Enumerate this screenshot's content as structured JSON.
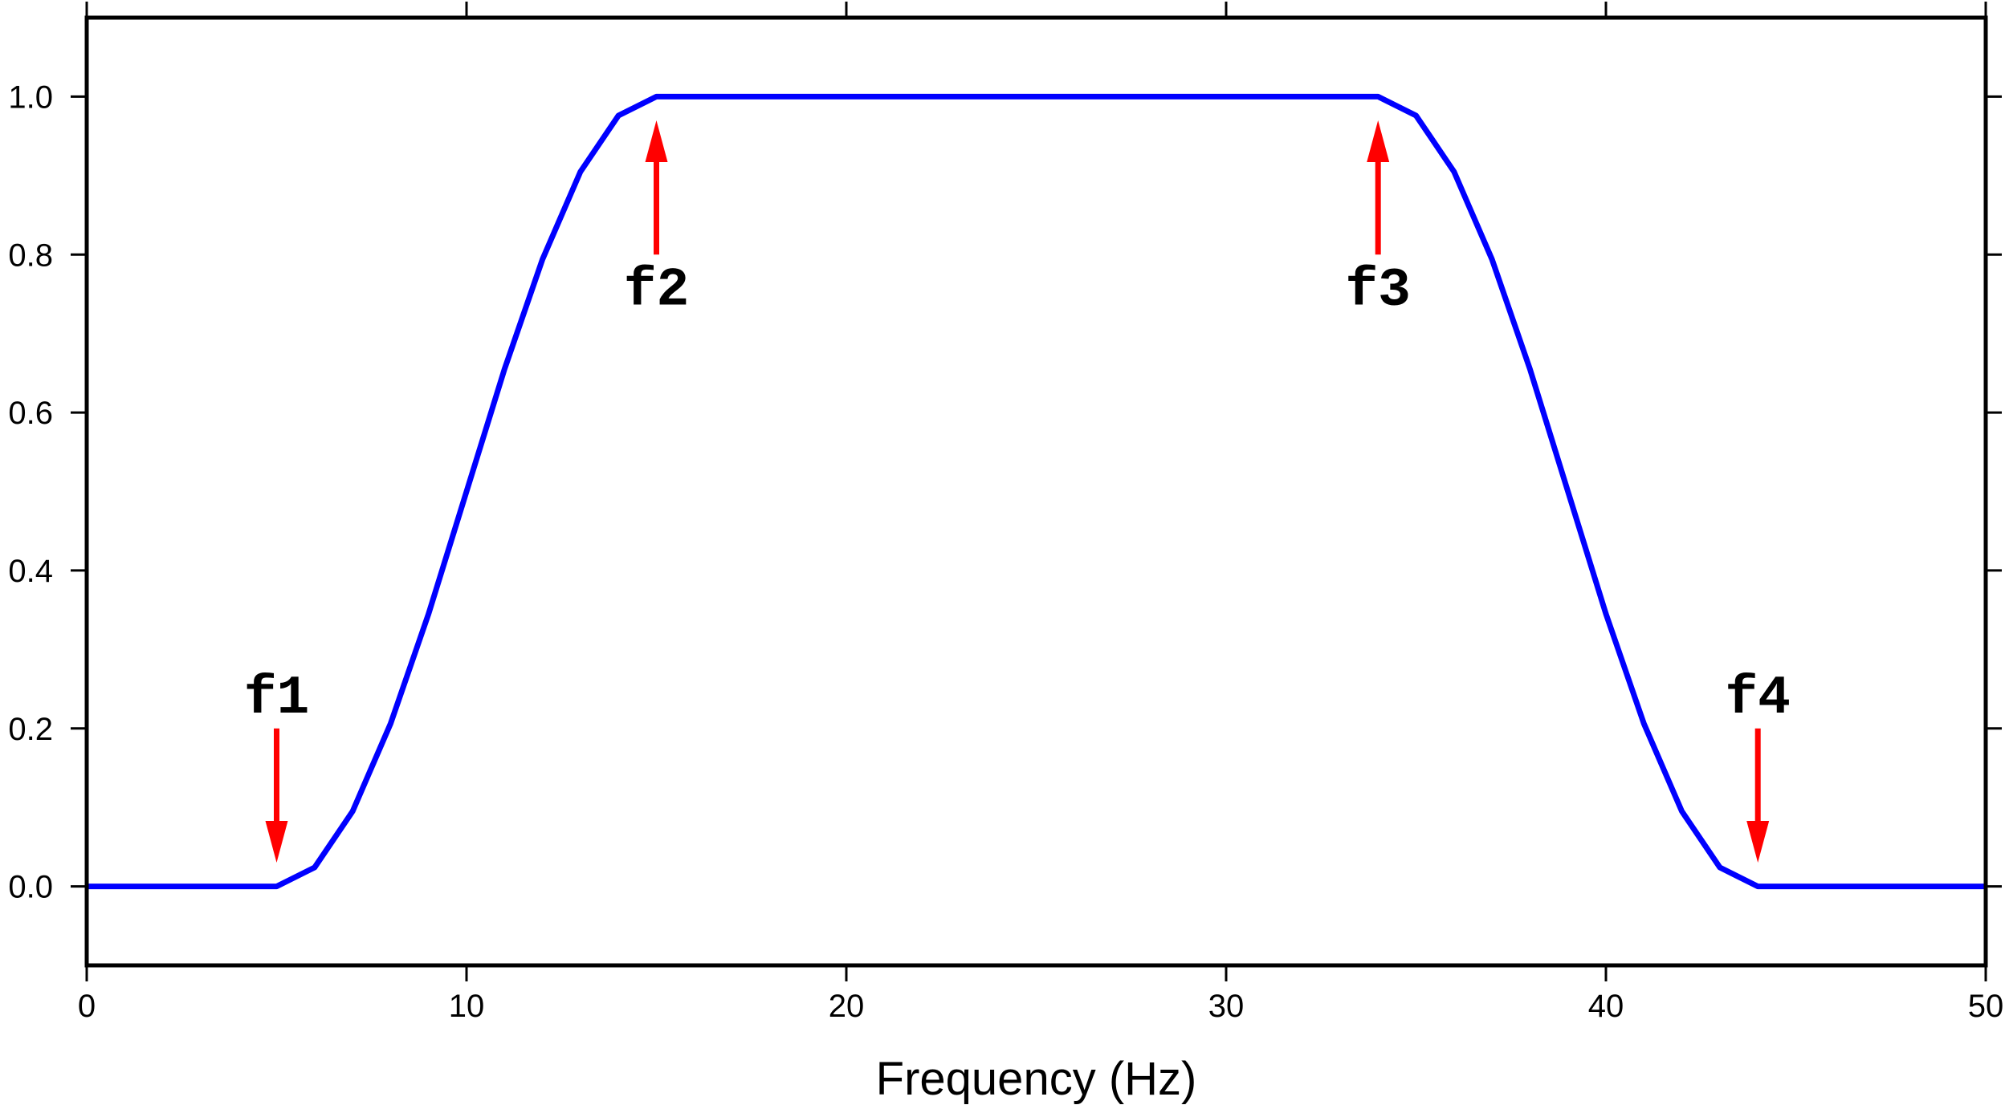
{
  "chart_data": {
    "type": "line",
    "xlabel": "Frequency (Hz)",
    "ylabel": "",
    "title": "",
    "xlim": [
      0,
      50
    ],
    "ylim": [
      -0.1,
      1.1
    ],
    "x_ticks": [
      0,
      10,
      20,
      30,
      40,
      50
    ],
    "x_tick_labels": [
      "0",
      "10",
      "20",
      "30",
      "40",
      "50"
    ],
    "y_ticks": [
      0.0,
      0.2,
      0.4,
      0.6,
      0.8,
      1.0
    ],
    "y_tick_labels": [
      "0.0",
      "0.2",
      "0.4",
      "0.6",
      "0.8",
      "1.0"
    ],
    "grid": false,
    "series": [
      {
        "color": "#0000ff",
        "x": [
          0,
          5,
          6,
          7,
          8,
          9,
          10,
          11,
          12,
          13,
          14,
          15,
          34,
          35,
          36,
          37,
          38,
          39,
          40,
          41,
          42,
          43,
          44,
          50
        ],
        "y": [
          0,
          0,
          0.024,
          0.095,
          0.206,
          0.345,
          0.5,
          0.655,
          0.794,
          0.905,
          0.976,
          1.0,
          1.0,
          0.976,
          0.905,
          0.794,
          0.655,
          0.5,
          0.345,
          0.206,
          0.095,
          0.024,
          0,
          0
        ]
      }
    ],
    "annotations": [
      {
        "label": "f1",
        "x": 5,
        "direction": "down",
        "label_position": "above",
        "arrow_from_y": 0.2,
        "arrow_to_y": 0.03
      },
      {
        "label": "f2",
        "x": 15,
        "direction": "up",
        "label_position": "below",
        "arrow_from_y": 0.8,
        "arrow_to_y": 0.97
      },
      {
        "label": "f3",
        "x": 34,
        "direction": "up",
        "label_position": "below",
        "arrow_from_y": 0.8,
        "arrow_to_y": 0.97
      },
      {
        "label": "f4",
        "x": 44,
        "direction": "down",
        "label_position": "above",
        "arrow_from_y": 0.2,
        "arrow_to_y": 0.03
      }
    ],
    "annotation_color": "#ff0000"
  }
}
